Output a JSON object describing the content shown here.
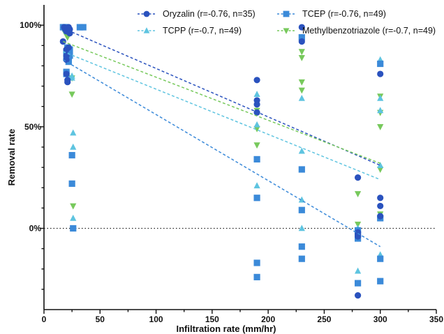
{
  "chart_data": {
    "type": "scatter",
    "title": "",
    "xlabel": "Infiltration rate (mm/hr)",
    "ylabel": "Removal rate",
    "xlim": [
      0,
      350
    ],
    "ylim": [
      -40,
      110
    ],
    "x_ticks": [
      0,
      50,
      100,
      150,
      200,
      250,
      300,
      350
    ],
    "y_ticks": [
      {
        "value": 100,
        "label": "100%"
      },
      {
        "value": 50,
        "label": "50%"
      },
      {
        "value": 0,
        "label": "0%"
      }
    ],
    "reference_line": {
      "y": 0,
      "style": "dotted"
    },
    "grid": false,
    "legend_position": "top",
    "series": [
      {
        "name": "Oryzalin (r=-0.76, n=35)",
        "color": "#2a52be",
        "marker": "circle",
        "points": [
          [
            17,
            92
          ],
          [
            18,
            99
          ],
          [
            19,
            98
          ],
          [
            20,
            97
          ],
          [
            20,
            88
          ],
          [
            20,
            85
          ],
          [
            20,
            83
          ],
          [
            20,
            76
          ],
          [
            21,
            73
          ],
          [
            21,
            72
          ],
          [
            22,
            99
          ],
          [
            22,
            98
          ],
          [
            22,
            89
          ],
          [
            23,
            98
          ],
          [
            23,
            96
          ],
          [
            190,
            73
          ],
          [
            190,
            63
          ],
          [
            190,
            61
          ],
          [
            190,
            57
          ],
          [
            230,
            99
          ],
          [
            230,
            92
          ],
          [
            280,
            25
          ],
          [
            280,
            -2
          ],
          [
            280,
            -3
          ],
          [
            280,
            -4
          ],
          [
            280,
            -33
          ],
          [
            300,
            76
          ],
          [
            300,
            15
          ],
          [
            300,
            11
          ],
          [
            300,
            6
          ]
        ],
        "fit": [
          [
            17,
            98.5
          ],
          [
            300,
            31
          ]
        ]
      },
      {
        "name": "TCEP (r=-0.76, n=49)",
        "color": "#3b8ad9",
        "marker": "square",
        "points": [
          [
            17,
            99
          ],
          [
            18,
            99
          ],
          [
            19,
            99
          ],
          [
            20,
            99
          ],
          [
            20,
            87
          ],
          [
            20,
            84
          ],
          [
            20,
            77
          ],
          [
            20,
            76
          ],
          [
            21,
            89
          ],
          [
            21,
            88
          ],
          [
            22,
            86
          ],
          [
            22,
            83
          ],
          [
            22,
            82
          ],
          [
            23,
            88
          ],
          [
            23,
            87
          ],
          [
            23,
            85
          ],
          [
            25,
            36
          ],
          [
            25,
            22
          ],
          [
            26,
            0
          ],
          [
            32,
            99
          ],
          [
            35,
            99
          ],
          [
            190,
            34
          ],
          [
            190,
            15
          ],
          [
            190,
            -17
          ],
          [
            190,
            -24
          ],
          [
            230,
            94
          ],
          [
            230,
            29
          ],
          [
            230,
            9
          ],
          [
            230,
            -9
          ],
          [
            230,
            -15
          ],
          [
            280,
            -1
          ],
          [
            280,
            -3
          ],
          [
            280,
            -5
          ],
          [
            280,
            -27
          ],
          [
            300,
            81
          ],
          [
            300,
            5
          ],
          [
            300,
            -15
          ],
          [
            300,
            -26
          ]
        ],
        "fit": [
          [
            17,
            83
          ],
          [
            300,
            -9
          ]
        ]
      },
      {
        "name": "TCPP (r=-0.7, n=49)",
        "color": "#5ec4e0",
        "marker": "triangle",
        "points": [
          [
            17,
            99
          ],
          [
            18,
            99
          ],
          [
            19,
            98
          ],
          [
            20,
            97
          ],
          [
            20,
            84
          ],
          [
            21,
            86
          ],
          [
            22,
            89
          ],
          [
            25,
            75
          ],
          [
            25,
            74
          ],
          [
            26,
            47
          ],
          [
            26,
            40
          ],
          [
            26,
            5
          ],
          [
            190,
            66
          ],
          [
            190,
            51
          ],
          [
            190,
            21
          ],
          [
            230,
            94
          ],
          [
            230,
            64
          ],
          [
            230,
            38
          ],
          [
            230,
            14
          ],
          [
            230,
            0
          ],
          [
            280,
            0
          ],
          [
            280,
            -21
          ],
          [
            300,
            83
          ],
          [
            300,
            64
          ],
          [
            300,
            58
          ],
          [
            300,
            31
          ],
          [
            300,
            -13
          ]
        ],
        "fit": [
          [
            17,
            87
          ],
          [
            300,
            24
          ]
        ]
      },
      {
        "name": "Methylbenzotriazole (r=-0.7, n=49)",
        "color": "#77c95c",
        "marker": "triangle-down",
        "points": [
          [
            17,
            99
          ],
          [
            18,
            97
          ],
          [
            19,
            99
          ],
          [
            20,
            95
          ],
          [
            21,
            94
          ],
          [
            22,
            87
          ],
          [
            23,
            85
          ],
          [
            25,
            74
          ],
          [
            25,
            66
          ],
          [
            26,
            11
          ],
          [
            190,
            58
          ],
          [
            190,
            49
          ],
          [
            190,
            41
          ],
          [
            230,
            87
          ],
          [
            230,
            84
          ],
          [
            230,
            72
          ],
          [
            230,
            68
          ],
          [
            280,
            17
          ],
          [
            280,
            2
          ],
          [
            300,
            65
          ],
          [
            300,
            57
          ],
          [
            300,
            50
          ],
          [
            300,
            29
          ],
          [
            300,
            7
          ]
        ],
        "fit": [
          [
            17,
            92
          ],
          [
            300,
            32
          ]
        ]
      }
    ]
  }
}
